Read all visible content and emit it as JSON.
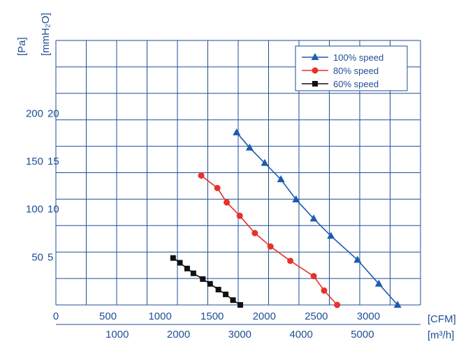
{
  "chart_data": {
    "type": "line",
    "title": "",
    "x_axis_primary": {
      "unit": "[CFM]",
      "range": [
        0,
        3500
      ],
      "ticks": [
        0,
        500,
        1000,
        1500,
        2000,
        2500,
        3000
      ]
    },
    "x_axis_secondary": {
      "unit": "[m³/h]",
      "ticks": [
        1000,
        2000,
        3000,
        4000,
        5000
      ]
    },
    "y_axis_primary": {
      "unit": "[Pa]",
      "ticks": [
        50,
        100,
        150,
        200
      ]
    },
    "y_axis_secondary": {
      "unit": "[mmH₂O]",
      "range": [
        0,
        27.6
      ],
      "ticks": [
        5,
        10,
        15,
        20
      ]
    },
    "grid": true,
    "legend_position": "top-right",
    "series": [
      {
        "name": "100%  speed",
        "marker": "triangle",
        "color": "#1f5bb0",
        "points": [
          [
            1735,
            18.0
          ],
          [
            1860,
            16.4
          ],
          [
            2005,
            14.8
          ],
          [
            2160,
            13.1
          ],
          [
            2305,
            11.0
          ],
          [
            2475,
            9.0
          ],
          [
            2640,
            7.2
          ],
          [
            2895,
            4.7
          ],
          [
            3100,
            2.2
          ],
          [
            3280,
            0.0
          ]
        ]
      },
      {
        "name": "80%  speed",
        "marker": "circle",
        "color": "#e8312a",
        "points": [
          [
            1395,
            13.5
          ],
          [
            1550,
            12.2
          ],
          [
            1640,
            10.7
          ],
          [
            1765,
            9.3
          ],
          [
            1910,
            7.5
          ],
          [
            2060,
            6.1
          ],
          [
            2250,
            4.6
          ],
          [
            2475,
            3.0
          ],
          [
            2575,
            1.5
          ],
          [
            2700,
            0.0
          ]
        ]
      },
      {
        "name": "60%  speed",
        "marker": "square",
        "color": "#111111",
        "points": [
          [
            1125,
            4.9
          ],
          [
            1190,
            4.4
          ],
          [
            1260,
            3.8
          ],
          [
            1320,
            3.3
          ],
          [
            1410,
            2.7
          ],
          [
            1480,
            2.2
          ],
          [
            1560,
            1.6
          ],
          [
            1630,
            1.1
          ],
          [
            1700,
            0.5
          ],
          [
            1770,
            0.0
          ]
        ]
      }
    ]
  }
}
